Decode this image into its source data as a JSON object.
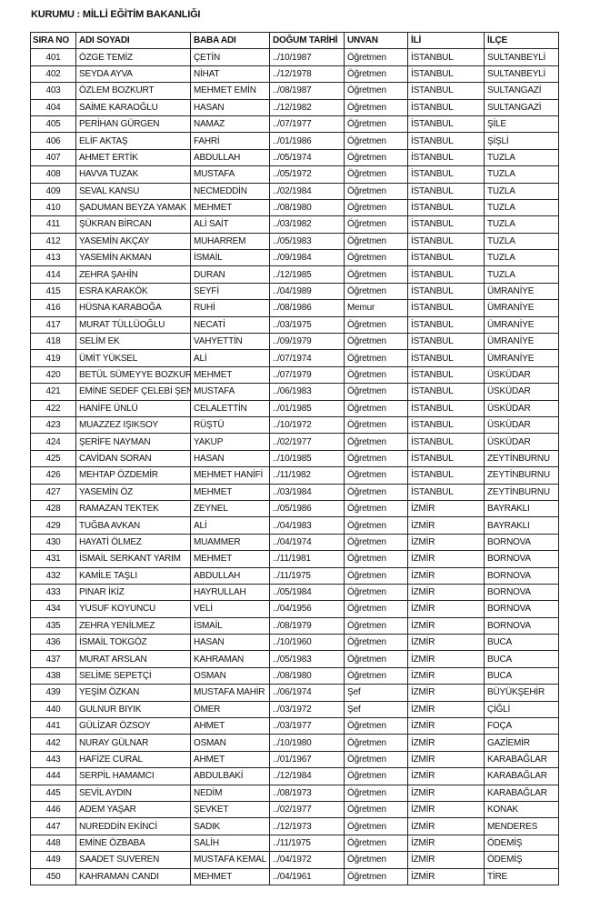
{
  "title": "KURUMU : MİLLİ EĞİTİM BAKANLIĞI",
  "columns": [
    "SIRA NO",
    "ADI SOYADI",
    "BABA ADI",
    "DOĞUM TARİHİ",
    "UNVAN",
    "İLİ",
    "İLÇE"
  ],
  "rows": [
    [
      "401",
      "ÖZGE TEMİZ",
      "ÇETİN",
      "../10/1987",
      "Öğretmen",
      "İSTANBUL",
      "SULTANBEYLİ"
    ],
    [
      "402",
      "SEYDA AYVA",
      "NİHAT",
      "../12/1978",
      "Öğretmen",
      "İSTANBUL",
      "SULTANBEYLİ"
    ],
    [
      "403",
      "ÖZLEM BOZKURT",
      "MEHMET EMİN",
      "../08/1987",
      "Öğretmen",
      "İSTANBUL",
      "SULTANGAZİ"
    ],
    [
      "404",
      "SAİME KARAOĞLU",
      "HASAN",
      "../12/1982",
      "Öğretmen",
      "İSTANBUL",
      "SULTANGAZİ"
    ],
    [
      "405",
      "PERİHAN GÜRGEN",
      "NAMAZ",
      "../07/1977",
      "Öğretmen",
      "İSTANBUL",
      "ŞİLE"
    ],
    [
      "406",
      "ELİF AKTAŞ",
      "FAHRİ",
      "../01/1986",
      "Öğretmen",
      "İSTANBUL",
      "ŞİŞLİ"
    ],
    [
      "407",
      "AHMET ERTİK",
      "ABDULLAH",
      "../05/1974",
      "Öğretmen",
      "İSTANBUL",
      "TUZLA"
    ],
    [
      "408",
      "HAVVA TUZAK",
      "MUSTAFA",
      "../05/1972",
      "Öğretmen",
      "İSTANBUL",
      "TUZLA"
    ],
    [
      "409",
      "SEVAL KANSU",
      "NECMEDDİN",
      "../02/1984",
      "Öğretmen",
      "İSTANBUL",
      "TUZLA"
    ],
    [
      "410",
      "ŞADUMAN BEYZA YAMAK",
      "MEHMET",
      "../08/1980",
      "Öğretmen",
      "İSTANBUL",
      "TUZLA"
    ],
    [
      "411",
      "ŞÜKRAN BİRCAN",
      "ALİ SAİT",
      "../03/1982",
      "Öğretmen",
      "İSTANBUL",
      "TUZLA"
    ],
    [
      "412",
      "YASEMİN AKÇAY",
      "MUHARREM",
      "../05/1983",
      "Öğretmen",
      "İSTANBUL",
      "TUZLA"
    ],
    [
      "413",
      "YASEMİN AKMAN",
      "İSMAİL",
      "../09/1984",
      "Öğretmen",
      "İSTANBUL",
      "TUZLA"
    ],
    [
      "414",
      "ZEHRA ŞAHİN",
      "DURAN",
      "../12/1985",
      "Öğretmen",
      "İSTANBUL",
      "TUZLA"
    ],
    [
      "415",
      "ESRA KARAKÖK",
      "SEYFİ",
      "../04/1989",
      "Öğretmen",
      "İSTANBUL",
      "ÜMRANİYE"
    ],
    [
      "416",
      "HÜSNA KARABOĞA",
      "RUHİ",
      "../08/1986",
      "Memur",
      "İSTANBUL",
      "ÜMRANİYE"
    ],
    [
      "417",
      "MURAT TÜLLÜOĞLU",
      "NECATİ",
      "../03/1975",
      "Öğretmen",
      "İSTANBUL",
      "ÜMRANİYE"
    ],
    [
      "418",
      "SELİM EK",
      "VAHYETTİN",
      "../09/1979",
      "Öğretmen",
      "İSTANBUL",
      "ÜMRANİYE"
    ],
    [
      "419",
      "ÜMİT YÜKSEL",
      "ALİ",
      "../07/1974",
      "Öğretmen",
      "İSTANBUL",
      "ÜMRANİYE"
    ],
    [
      "420",
      "BETÜL SÜMEYYE BOZKURT",
      "MEHMET",
      "../07/1979",
      "Öğretmen",
      "İSTANBUL",
      "ÜSKÜDAR"
    ],
    [
      "421",
      "EMİNE SEDEF ÇELEBİ ŞEN",
      "MUSTAFA",
      "../06/1983",
      "Öğretmen",
      "İSTANBUL",
      "ÜSKÜDAR"
    ],
    [
      "422",
      "HANİFE ÜNLÜ",
      "CELALETTİN",
      "../01/1985",
      "Öğretmen",
      "İSTANBUL",
      "ÜSKÜDAR"
    ],
    [
      "423",
      "MUAZZEZ IŞIKSOY",
      "RÜŞTÜ",
      "../10/1972",
      "Öğretmen",
      "İSTANBUL",
      "ÜSKÜDAR"
    ],
    [
      "424",
      "ŞERİFE NAYMAN",
      "YAKUP",
      "../02/1977",
      "Öğretmen",
      "İSTANBUL",
      "ÜSKÜDAR"
    ],
    [
      "425",
      "CAVİDAN SORAN",
      "HASAN",
      "../10/1985",
      "Öğretmen",
      "İSTANBUL",
      "ZEYTİNBURNU"
    ],
    [
      "426",
      "MEHTAP ÖZDEMİR",
      "MEHMET HANİFİ",
      "../11/1982",
      "Öğretmen",
      "İSTANBUL",
      "ZEYTİNBURNU"
    ],
    [
      "427",
      "YASEMİN ÖZ",
      "MEHMET",
      "../03/1984",
      "Öğretmen",
      "İSTANBUL",
      "ZEYTİNBURNU"
    ],
    [
      "428",
      "RAMAZAN TEKTEK",
      "ZEYNEL",
      "../05/1986",
      "Öğretmen",
      "İZMİR",
      "BAYRAKLI"
    ],
    [
      "429",
      "TUĞBA AVKAN",
      "ALİ",
      "../04/1983",
      "Öğretmen",
      "İZMİR",
      "BAYRAKLI"
    ],
    [
      "430",
      "HAYATİ ÖLMEZ",
      "MUAMMER",
      "../04/1974",
      "Öğretmen",
      "İZMİR",
      "BORNOVA"
    ],
    [
      "431",
      "İSMAİL SERKANT YARIM",
      "MEHMET",
      "../11/1981",
      "Öğretmen",
      "İZMİR",
      "BORNOVA"
    ],
    [
      "432",
      "KAMİLE TAŞLI",
      "ABDULLAH",
      "../11/1975",
      "Öğretmen",
      "İZMİR",
      "BORNOVA"
    ],
    [
      "433",
      "PINAR İKİZ",
      "HAYRULLAH",
      "../05/1984",
      "Öğretmen",
      "İZMİR",
      "BORNOVA"
    ],
    [
      "434",
      "YUSUF KOYUNCU",
      "VELİ",
      "../04/1956",
      "Öğretmen",
      "İZMİR",
      "BORNOVA"
    ],
    [
      "435",
      "ZEHRA YENİLMEZ",
      "İSMAİL",
      "../08/1979",
      "Öğretmen",
      "İZMİR",
      "BORNOVA"
    ],
    [
      "436",
      "İSMAİL TOKGÖZ",
      "HASAN",
      "../10/1960",
      "Öğretmen",
      "İZMİR",
      "BUCA"
    ],
    [
      "437",
      "MURAT ARSLAN",
      "KAHRAMAN",
      "../05/1983",
      "Öğretmen",
      "İZMİR",
      "BUCA"
    ],
    [
      "438",
      "SELİME SEPETÇİ",
      "OSMAN",
      "../08/1980",
      "Öğretmen",
      "İZMİR",
      "BUCA"
    ],
    [
      "439",
      "YEŞİM ÖZKAN",
      "MUSTAFA MAHİR",
      "../06/1974",
      "Şef",
      "İZMİR",
      "BÜYÜKŞEHİR"
    ],
    [
      "440",
      "GULNUR BIYIK",
      "ÖMER",
      "../03/1972",
      "Şef",
      "İZMİR",
      "ÇİĞLİ"
    ],
    [
      "441",
      "GÜLİZAR ÖZSOY",
      "AHMET",
      "../03/1977",
      "Öğretmen",
      "İZMİR",
      "FOÇA"
    ],
    [
      "442",
      "NURAY GÜLNAR",
      "OSMAN",
      "../10/1980",
      "Öğretmen",
      "İZMİR",
      "GAZİEMİR"
    ],
    [
      "443",
      "HAFİZE CURAL",
      "AHMET",
      "../01/1967",
      "Öğretmen",
      "İZMİR",
      "KARABAĞLAR"
    ],
    [
      "444",
      "SERPİL HAMAMCI",
      "ABDULBAKİ",
      "../12/1984",
      "Öğretmen",
      "İZMİR",
      "KARABAĞLAR"
    ],
    [
      "445",
      "SEVİL AYDIN",
      "NEDİM",
      "../08/1973",
      "Öğretmen",
      "İZMİR",
      "KARABAĞLAR"
    ],
    [
      "446",
      "ADEM YAŞAR",
      "ŞEVKET",
      "../02/1977",
      "Öğretmen",
      "İZMİR",
      "KONAK"
    ],
    [
      "447",
      "NUREDDİN EKİNCİ",
      "SADIK",
      "../12/1973",
      "Öğretmen",
      "İZMİR",
      "MENDERES"
    ],
    [
      "448",
      "EMİNE ÖZBABA",
      "SALİH",
      "../11/1975",
      "Öğretmen",
      "İZMİR",
      "ÖDEMİŞ"
    ],
    [
      "449",
      "SAADET SUVEREN",
      "MUSTAFA KEMAL",
      "../04/1972",
      "Öğretmen",
      "İZMİR",
      "ÖDEMİŞ"
    ],
    [
      "450",
      "KAHRAMAN CANDI",
      "MEHMET",
      "../04/1961",
      "Öğretmen",
      "İZMİR",
      "TİRE"
    ]
  ]
}
